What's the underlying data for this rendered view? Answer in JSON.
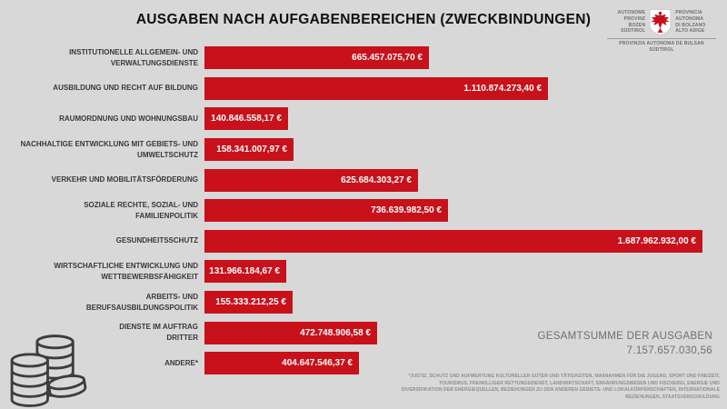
{
  "logo": {
    "left_lines": [
      "AUTONOME",
      "PROVINZ",
      "BOZEN",
      "SÜDTIROL"
    ],
    "right_lines": [
      "PROVINCIA",
      "AUTONOMA",
      "DI BOLZANO",
      "ALTO ADIGE"
    ],
    "bottom_lines": [
      "PROVINZIA AUTONOMA DE BULSAN",
      "SÜDTIROL"
    ],
    "eagle_color": "#c8101a",
    "shield_color": "#ffffff"
  },
  "chart_data": {
    "type": "bar",
    "orientation": "horizontal",
    "title": "AUSGABEN NACH AUFGABENBEREICHEN  (ZWECKBINDUNGEN)",
    "bar_color": "#c8111a",
    "unit": "EUR",
    "xmin": 0,
    "xmax": 1687962932.0,
    "rows": [
      {
        "label_lines": [
          "INSTITUTIONELLE ALLGEMEIN- UND",
          "VERWALTUNGSDIENSTE"
        ],
        "value": 665457075.7,
        "value_label": "665.457.075,70 €"
      },
      {
        "label_lines": [
          "AUSBILDUNG UND RECHT AUF BILDUNG"
        ],
        "value": 1110874273.4,
        "value_label": "1.110.874.273,40 €"
      },
      {
        "label_lines": [
          "RAUMORDNUNG UND WOHNUNGSBAU"
        ],
        "value": 140846558.17,
        "value_label": "140.846.558,17 €"
      },
      {
        "label_lines": [
          "NACHHALTIGE ENTWICKLUNG MIT GEBIETS- UND",
          "UMWELTSCHUTZ"
        ],
        "value": 158341007.97,
        "value_label": "158.341.007,97 €"
      },
      {
        "label_lines": [
          "VERKEHR UND MOBILITÄTSFÖRDERUNG"
        ],
        "value": 625684303.27,
        "value_label": "625.684.303,27 €"
      },
      {
        "label_lines": [
          "SOZIALE RECHTE, SOZIAL- UND",
          "FAMILIENPOLITIK"
        ],
        "value": 736639982.5,
        "value_label": "736.639.982,50 €"
      },
      {
        "label_lines": [
          "GESUNDHEITSSCHUTZ"
        ],
        "value": 1687962932.0,
        "value_label": "1.687.962.932,00 €"
      },
      {
        "label_lines": [
          "WIRTSCHAFTLICHE ENTWICKLUNG UND",
          "WETTBEWERBSFÄHIGKEIT"
        ],
        "value": 131966184.67,
        "value_label": "131.966.184,67 €"
      },
      {
        "label_lines": [
          "ARBEITS- UND",
          "BERUFSAUSBILDUNGSPOLITIK"
        ],
        "value": 155333212.25,
        "value_label": "155.333.212,25 €"
      },
      {
        "label_lines": [
          "DIENSTE IM AUFTRAG",
          "DRITTER"
        ],
        "value": 472748906.58,
        "value_label": "472.748.906,58 €"
      },
      {
        "label_lines": [
          "ANDERE*"
        ],
        "value": 404647546.37,
        "value_label": "404.647.546,37 €"
      }
    ],
    "legend": null,
    "grid": false
  },
  "total": {
    "label": "GESAMTSUMME DER AUSGABEN",
    "value": "7.157.657.030,56"
  },
  "footnote_lines": [
    "*JUSTIZ, SCHUTZ UND AUFWERTUNG KULTURELLER GÜTER UND TÄTIGKEITEN, MAßNAHMEN FÜR DIE JUGEND, SPORT UND FREIZEIT,",
    "TOURISMUS, FREIWILLIGER RETTUNGSDIENST, LANDWIRTSCHAFT, ERNÄHRUNGSWESEN UND FISCHEREI, ENERGIE UND",
    "DIVERSIFIKATION DER ENERGIEQUELLEN, BEZIEHUNGEN ZU DEN ANDEREN GEBIETS- UND LOKALKÖRPERSCHAFTEN, INTERNATIONALE",
    "BEZIEHUNGEN, STAATSVERSCHULDUNG"
  ],
  "colors": {
    "background": "#d8d8d8",
    "bar": "#c8111a",
    "label_text": "#383838",
    "muted_text": "#6f6f6f",
    "footnote_text": "#8d8d8d",
    "coin_outline": "#3d3d3d"
  }
}
